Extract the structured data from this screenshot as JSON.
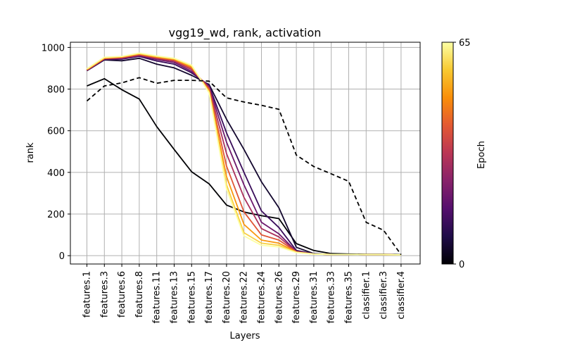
{
  "chart_data": {
    "type": "line",
    "title": "vgg19_wd, rank, activation",
    "xlabel": "Layers",
    "ylabel": "rank",
    "ylim": [
      -40,
      1025
    ],
    "yticks": [
      0,
      200,
      400,
      600,
      800,
      1000
    ],
    "grid": true,
    "categories": [
      "features.1",
      "features.3",
      "features.6",
      "features.8",
      "features.11",
      "features.13",
      "features.15",
      "features.17",
      "features.20",
      "features.22",
      "features.24",
      "features.26",
      "features.29",
      "features.31",
      "features.33",
      "features.35",
      "classifier.1",
      "classifier.3",
      "classifier.4"
    ],
    "colorbar": {
      "label": "Epoch",
      "min": 0,
      "max": 65,
      "min_label": "0",
      "max_label": "65",
      "colormap": "inferno"
    },
    "series": [
      {
        "epoch": 0,
        "style": "solid",
        "values": [
          815,
          850,
          797,
          752,
          620,
          510,
          403,
          345,
          243,
          210,
          192,
          178,
          58,
          25,
          10,
          8,
          7,
          7,
          5
        ]
      },
      {
        "epoch": 5,
        "style": "solid",
        "values": [
          888,
          940,
          936,
          948,
          920,
          902,
          866,
          822,
          655,
          510,
          355,
          230,
          40,
          10,
          6,
          6,
          5,
          5,
          4
        ]
      },
      {
        "epoch": 12,
        "style": "solid",
        "values": [
          889,
          942,
          944,
          957,
          935,
          920,
          878,
          818,
          590,
          400,
          215,
          135,
          25,
          9,
          6,
          6,
          5,
          5,
          4
        ]
      },
      {
        "epoch": 20,
        "style": "solid",
        "values": [
          890,
          944,
          947,
          960,
          942,
          928,
          885,
          813,
          545,
          340,
          160,
          105,
          20,
          8,
          6,
          6,
          5,
          5,
          4
        ]
      },
      {
        "epoch": 30,
        "style": "solid",
        "values": [
          891,
          946,
          950,
          963,
          947,
          934,
          893,
          807,
          490,
          280,
          130,
          90,
          19,
          8,
          6,
          6,
          5,
          5,
          4
        ]
      },
      {
        "epoch": 40,
        "style": "solid",
        "values": [
          892,
          947,
          952,
          966,
          951,
          939,
          900,
          800,
          430,
          210,
          100,
          75,
          18,
          8,
          6,
          6,
          5,
          5,
          4
        ]
      },
      {
        "epoch": 50,
        "style": "solid",
        "values": [
          894,
          949,
          954,
          969,
          954,
          943,
          906,
          792,
          380,
          150,
          75,
          60,
          17,
          8,
          6,
          6,
          5,
          5,
          4
        ]
      },
      {
        "epoch": 58,
        "style": "solid",
        "values": [
          896,
          951,
          956,
          971,
          957,
          946,
          911,
          786,
          340,
          110,
          60,
          50,
          16,
          8,
          6,
          6,
          5,
          5,
          4
        ]
      },
      {
        "epoch": 65,
        "style": "solid",
        "values": [
          898,
          953,
          957,
          973,
          959,
          948,
          915,
          782,
          320,
          95,
          50,
          42,
          15,
          8,
          6,
          6,
          5,
          5,
          4
        ]
      },
      {
        "epoch": 0,
        "style": "dashed",
        "values": [
          743,
          815,
          830,
          855,
          828,
          842,
          842,
          838,
          758,
          738,
          722,
          703,
          483,
          428,
          393,
          357,
          160,
          122,
          5
        ]
      }
    ]
  }
}
